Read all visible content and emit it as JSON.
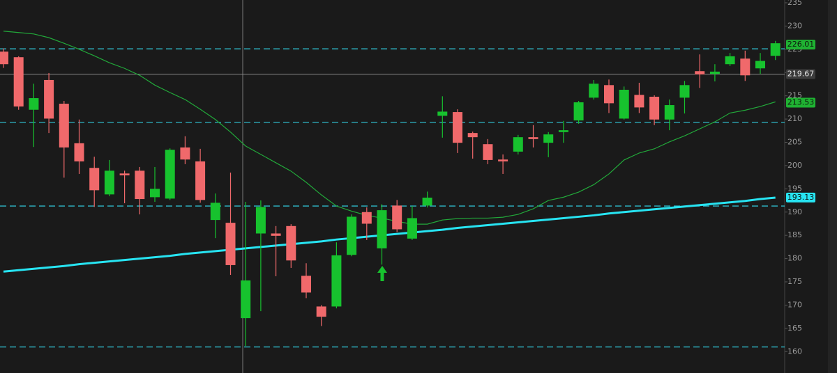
{
  "chart_data": {
    "type": "candlestick",
    "up_color": "#17c22e",
    "down_color": "#f0696b",
    "ylim": [
      155.4,
      235.6
    ],
    "yticks": [
      160,
      165,
      170,
      175,
      180,
      185,
      190,
      195,
      200,
      205,
      210,
      215,
      220,
      225,
      230,
      235
    ],
    "open": [
      224.5,
      223.3,
      212,
      218.4,
      213.3,
      204.8,
      199.5,
      193.8,
      198.3,
      198.9,
      193.2,
      192.9,
      203.9,
      200.9,
      188.3,
      187.7,
      167.2,
      185.4,
      185.4,
      187.0,
      176.3,
      169.7,
      169.7,
      180.8,
      190.0,
      182.2,
      191.4,
      184.3,
      191.4,
      210.7,
      211.5,
      207.0,
      204.6,
      201.3,
      203.0,
      206.1,
      204.9,
      207.2,
      209.7,
      214.6,
      217.3,
      210.1,
      215.2,
      214.8,
      209.9,
      214.6,
      220.3,
      219.7,
      221.8,
      223.0,
      220.9,
      223.6
    ],
    "high": [
      225.2,
      223.5,
      217.6,
      219.9,
      213.9,
      209.9,
      201.9,
      201.2,
      198.9,
      199.7,
      199.7,
      203.7,
      206.3,
      203.6,
      194.0,
      198.5,
      192.2,
      192.5,
      187.0,
      187.4,
      179.0,
      170.0,
      183.5,
      189.5,
      191.0,
      191.7,
      192.6,
      191.3,
      194.4,
      214.9,
      212.1,
      207.3,
      205.7,
      202.4,
      206.6,
      208.7,
      207.2,
      209.6,
      213.9,
      218.4,
      218.5,
      217.0,
      217.8,
      215.1,
      214.2,
      218.2,
      223.9,
      221.8,
      224.2,
      224.7,
      224.2,
      226.8
    ],
    "low": [
      221.0,
      212.0,
      204.0,
      207.0,
      197.4,
      198.2,
      191.1,
      193.4,
      191.9,
      189.5,
      192.2,
      192.6,
      200.3,
      192.0,
      184.4,
      176.5,
      161.2,
      168.7,
      176.2,
      178.0,
      171.5,
      165.5,
      169.3,
      180.5,
      184.0,
      178.7,
      185.7,
      184.0,
      191.0,
      206.0,
      202.7,
      201.5,
      200.3,
      198.2,
      202.4,
      203.9,
      201.8,
      204.9,
      209.0,
      214.2,
      211.3,
      209.9,
      211.3,
      208.7,
      207.6,
      211.2,
      216.7,
      218.1,
      221.4,
      218.2,
      219.7,
      222.7
    ],
    "close": [
      221.8,
      212.7,
      214.5,
      210.1,
      203.9,
      200.9,
      194.7,
      198.9,
      197.9,
      192.8,
      195.0,
      203.4,
      201.3,
      192.6,
      192.0,
      178.6,
      175.3,
      191.1,
      184.9,
      179.6,
      172.7,
      167.5,
      180.7,
      189.0,
      187.5,
      190.4,
      186.3,
      188.7,
      193.1,
      211.6,
      204.9,
      206.1,
      201.2,
      200.9,
      206.1,
      205.7,
      206.7,
      207.6,
      213.6,
      217.6,
      213.4,
      216.3,
      212.5,
      209.9,
      213.0,
      217.3,
      219.6,
      220.2,
      223.5,
      219.4,
      222.5,
      226.3
    ],
    "series": [
      {
        "color": "#22a83a",
        "width": 1.2,
        "values": [
          228.9,
          228.6,
          228.3,
          227.5,
          226.3,
          225.0,
          223.6,
          222.1,
          220.9,
          219.4,
          217.3,
          215.7,
          214.2,
          212.1,
          209.9,
          207.2,
          204.2,
          202.4,
          200.6,
          198.8,
          196.4,
          193.7,
          191.3,
          190.2,
          189.3,
          188.7,
          188.0,
          187.4,
          187.4,
          188.3,
          188.6,
          188.7,
          188.7,
          188.9,
          189.5,
          190.7,
          192.5,
          193.2,
          194.3,
          195.9,
          198.2,
          201.2,
          202.7,
          203.6,
          205.1,
          206.4,
          207.9,
          209.4,
          211.3,
          211.9,
          212.7,
          213.7
        ]
      },
      {
        "color": "#27e4f2",
        "width": 3,
        "values": [
          177.2,
          177.5,
          177.8,
          178.1,
          178.4,
          178.8,
          179.1,
          179.4,
          179.7,
          180.0,
          180.3,
          180.6,
          181.0,
          181.3,
          181.6,
          181.9,
          182.2,
          182.5,
          182.8,
          183.1,
          183.4,
          183.7,
          184.1,
          184.4,
          184.7,
          185.0,
          185.3,
          185.6,
          185.9,
          186.2,
          186.6,
          186.9,
          187.2,
          187.5,
          187.8,
          188.1,
          188.4,
          188.7,
          189.0,
          189.3,
          189.7,
          190.0,
          190.3,
          190.6,
          190.9,
          191.2,
          191.5,
          191.8,
          192.1,
          192.4,
          192.8,
          193.1
        ]
      }
    ],
    "levels": [
      225.1,
      209.3,
      191.3,
      161.0
    ],
    "last_price": 219.67,
    "price_labels": [
      {
        "value": 226.01,
        "color": "#1fb232",
        "text_color": "#0d1a0d"
      },
      {
        "value": 219.67,
        "color": "#3c3c3c",
        "text_color": "#e0e0e0"
      },
      {
        "value": 213.53,
        "color": "#1fb232",
        "text_color": "#0d1a0d"
      },
      {
        "value": 193.13,
        "color": "#27e4f2",
        "text_color": "#0d1a1a"
      }
    ]
  }
}
